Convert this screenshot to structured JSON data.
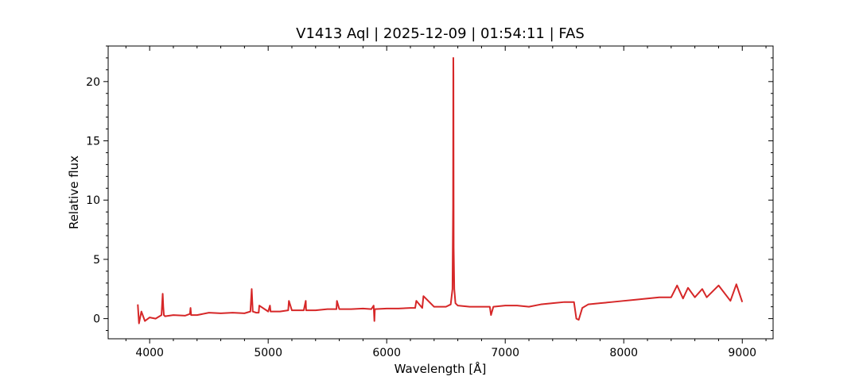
{
  "chart_data": {
    "type": "line",
    "title": "V1413 Aql | 2025-12-09 | 01:54:11 | FAS",
    "xlabel": "Wavelength [Å]",
    "ylabel": "Relative flux",
    "xlim": [
      3650,
      9260
    ],
    "ylim": [
      -1.7,
      23.0
    ],
    "x_ticks": [
      4000,
      5000,
      6000,
      7000,
      8000,
      9000
    ],
    "x_tick_labels": [
      "4000",
      "5000",
      "6000",
      "7000",
      "8000",
      "9000"
    ],
    "y_ticks": [
      0,
      5,
      10,
      15,
      20
    ],
    "y_tick_labels": [
      "0",
      "5",
      "10",
      "15",
      "20"
    ],
    "grid": false,
    "line_color": "#d62728",
    "series": [
      {
        "x": [
          3900,
          3910,
          3930,
          3960,
          4000,
          4050,
          4100,
          4110,
          4115,
          4120,
          4130,
          4200,
          4300,
          4340,
          4345,
          4350,
          4400,
          4500,
          4600,
          4700,
          4800,
          4850,
          4861,
          4870,
          4900,
          4920,
          4925,
          5000,
          5015,
          5020,
          5100,
          5169,
          5175,
          5200,
          5300,
          5317,
          5320,
          5400,
          5500,
          5576,
          5580,
          5600,
          5700,
          5800,
          5870,
          5890,
          5896,
          5900,
          6000,
          6100,
          6200,
          6240,
          6250,
          6300,
          6310,
          6400,
          6450,
          6500,
          6540,
          6555,
          6560,
          6562,
          6563,
          6565,
          6570,
          6580,
          6600,
          6700,
          6800,
          6870,
          6880,
          6900,
          7000,
          7100,
          7200,
          7300,
          7400,
          7500,
          7580,
          7600,
          7620,
          7650,
          7700,
          7800,
          7900,
          8000,
          8100,
          8200,
          8300,
          8400,
          8450,
          8500,
          8542,
          8600,
          8662,
          8700,
          8800,
          8900,
          8950,
          9000
        ],
        "y": [
          1.2,
          -0.4,
          0.6,
          -0.2,
          0.1,
          0.0,
          0.3,
          2.1,
          1.0,
          0.3,
          0.2,
          0.3,
          0.25,
          0.4,
          0.9,
          0.3,
          0.3,
          0.5,
          0.45,
          0.5,
          0.45,
          0.6,
          2.5,
          0.6,
          0.5,
          0.5,
          1.1,
          0.6,
          1.1,
          0.6,
          0.6,
          0.7,
          1.5,
          0.7,
          0.7,
          1.5,
          0.7,
          0.7,
          0.8,
          0.8,
          1.5,
          0.8,
          0.8,
          0.85,
          0.8,
          1.1,
          -0.2,
          0.8,
          0.85,
          0.85,
          0.9,
          0.9,
          1.5,
          0.9,
          1.9,
          1.0,
          1.0,
          1.0,
          1.2,
          2.5,
          9.5,
          22.0,
          20.5,
          6.0,
          2.5,
          1.3,
          1.1,
          1.0,
          1.0,
          1.0,
          0.3,
          1.0,
          1.1,
          1.1,
          1.0,
          1.2,
          1.3,
          1.4,
          1.4,
          0.0,
          -0.1,
          0.9,
          1.2,
          1.3,
          1.4,
          1.5,
          1.6,
          1.7,
          1.8,
          1.8,
          2.8,
          1.7,
          2.6,
          1.8,
          2.5,
          1.8,
          2.8,
          1.5,
          2.9,
          1.4
        ]
      }
    ]
  }
}
